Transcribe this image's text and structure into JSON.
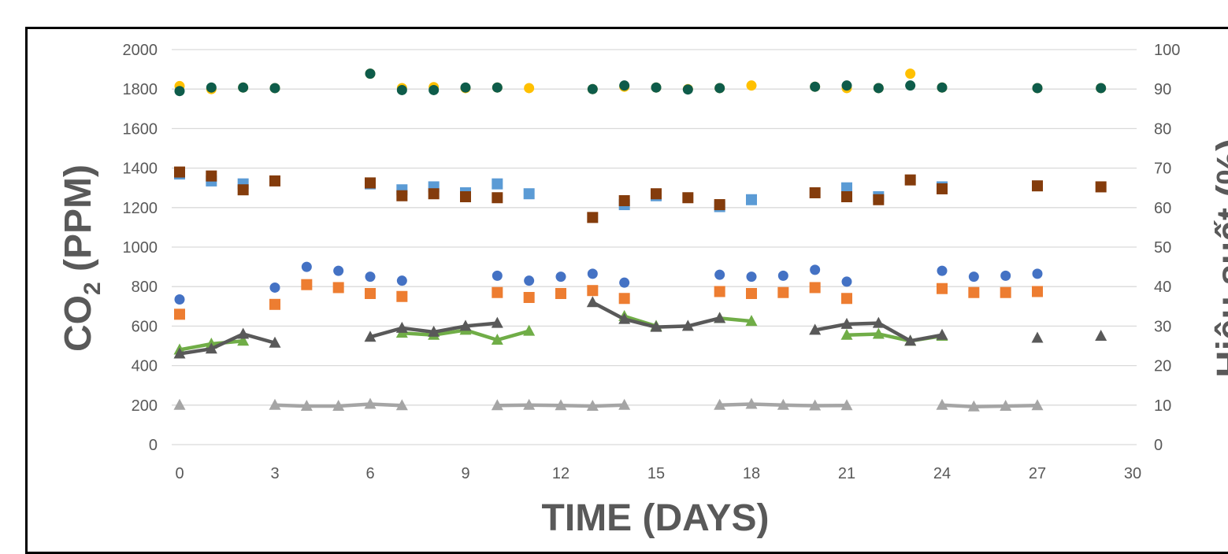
{
  "chart_data": {
    "type": "scatter",
    "xlabel": "TIME (DAYS)",
    "ylabel_left": "CO2 (PPM)",
    "ylabel_right": "Hiệu suất (%)",
    "xlim": [
      0,
      30
    ],
    "ylim_left": [
      0,
      2000
    ],
    "ylim_right": [
      0,
      100
    ],
    "x_ticks": [
      0,
      3,
      6,
      9,
      12,
      15,
      18,
      21,
      24,
      27,
      30
    ],
    "y_ticks_left": [
      0,
      200,
      400,
      600,
      800,
      1000,
      1200,
      1400,
      1600,
      1800,
      2000
    ],
    "y_ticks_right": [
      0,
      10,
      20,
      30,
      40,
      50,
      60,
      70,
      80,
      90,
      100
    ],
    "grid": "horizontal",
    "series": [
      {
        "marker": "circle",
        "color": "#FFC000",
        "line": false,
        "axis": "left",
        "points": [
          [
            0,
            1815
          ],
          [
            1,
            1800
          ],
          [
            2,
            1808
          ],
          [
            3,
            1805
          ],
          [
            6,
            1878
          ],
          [
            7,
            1805
          ],
          [
            8,
            1810
          ],
          [
            9,
            1805
          ],
          [
            10,
            1808
          ],
          [
            11,
            1805
          ],
          [
            13,
            1800
          ],
          [
            14,
            1812
          ],
          [
            15,
            1808
          ],
          [
            16,
            1800
          ],
          [
            17,
            1805
          ],
          [
            18,
            1818
          ],
          [
            20,
            1812
          ],
          [
            21,
            1805
          ],
          [
            22,
            1805
          ],
          [
            23,
            1878
          ],
          [
            24,
            1808
          ],
          [
            27,
            1805
          ],
          [
            29,
            1805
          ]
        ]
      },
      {
        "marker": "circle",
        "color": "#0E5C4A",
        "line": false,
        "axis": "left",
        "points": [
          [
            0,
            1790
          ],
          [
            1,
            1808
          ],
          [
            2,
            1808
          ],
          [
            3,
            1805
          ],
          [
            6,
            1878
          ],
          [
            7,
            1795
          ],
          [
            8,
            1795
          ],
          [
            9,
            1808
          ],
          [
            10,
            1808
          ],
          [
            13,
            1800
          ],
          [
            14,
            1818
          ],
          [
            15,
            1808
          ],
          [
            16,
            1798
          ],
          [
            17,
            1805
          ],
          [
            20,
            1812
          ],
          [
            21,
            1818
          ],
          [
            22,
            1805
          ],
          [
            23,
            1818
          ],
          [
            24,
            1808
          ],
          [
            27,
            1805
          ],
          [
            29,
            1805
          ]
        ]
      },
      {
        "marker": "square",
        "color": "#5B9BD5",
        "line": false,
        "axis": "left",
        "points": [
          [
            0,
            1370
          ],
          [
            1,
            1335
          ],
          [
            2,
            1320
          ],
          [
            6,
            1320
          ],
          [
            7,
            1290
          ],
          [
            8,
            1305
          ],
          [
            9,
            1275
          ],
          [
            10,
            1320
          ],
          [
            11,
            1270
          ],
          [
            14,
            1215
          ],
          [
            15,
            1260
          ],
          [
            17,
            1205
          ],
          [
            18,
            1240
          ],
          [
            21,
            1300
          ],
          [
            22,
            1255
          ],
          [
            24,
            1305
          ]
        ]
      },
      {
        "marker": "square",
        "color": "#843C0C",
        "line": false,
        "axis": "left",
        "points": [
          [
            0,
            1380
          ],
          [
            1,
            1360
          ],
          [
            2,
            1290
          ],
          [
            3,
            1335
          ],
          [
            6,
            1325
          ],
          [
            7,
            1260
          ],
          [
            8,
            1270
          ],
          [
            9,
            1255
          ],
          [
            10,
            1250
          ],
          [
            13,
            1150
          ],
          [
            14,
            1235
          ],
          [
            15,
            1270
          ],
          [
            16,
            1250
          ],
          [
            17,
            1215
          ],
          [
            20,
            1275
          ],
          [
            21,
            1255
          ],
          [
            22,
            1240
          ],
          [
            23,
            1340
          ],
          [
            24,
            1295
          ],
          [
            27,
            1310
          ],
          [
            29,
            1305
          ]
        ]
      },
      {
        "marker": "circle",
        "color": "#4472C4",
        "line": false,
        "axis": "left",
        "points": [
          [
            0,
            735
          ],
          [
            3,
            795
          ],
          [
            4,
            900
          ],
          [
            5,
            880
          ],
          [
            6,
            850
          ],
          [
            7,
            830
          ],
          [
            10,
            855
          ],
          [
            11,
            830
          ],
          [
            12,
            850
          ],
          [
            13,
            865
          ],
          [
            14,
            820
          ],
          [
            17,
            860
          ],
          [
            18,
            850
          ],
          [
            19,
            855
          ],
          [
            20,
            885
          ],
          [
            21,
            825
          ],
          [
            24,
            880
          ],
          [
            25,
            850
          ],
          [
            26,
            855
          ],
          [
            27,
            865
          ]
        ]
      },
      {
        "marker": "square",
        "color": "#ED7D31",
        "line": false,
        "axis": "left",
        "points": [
          [
            0,
            660
          ],
          [
            3,
            710
          ],
          [
            4,
            810
          ],
          [
            5,
            795
          ],
          [
            6,
            765
          ],
          [
            7,
            750
          ],
          [
            10,
            770
          ],
          [
            11,
            745
          ],
          [
            12,
            765
          ],
          [
            13,
            780
          ],
          [
            14,
            740
          ],
          [
            17,
            775
          ],
          [
            18,
            765
          ],
          [
            19,
            770
          ],
          [
            20,
            795
          ],
          [
            21,
            740
          ],
          [
            24,
            790
          ],
          [
            25,
            770
          ],
          [
            26,
            770
          ],
          [
            27,
            775
          ]
        ]
      },
      {
        "marker": "triangle",
        "color": "#70AD47",
        "line": true,
        "axis": "left",
        "segments": [
          [
            [
              0,
              480
            ],
            [
              1,
              510
            ],
            [
              2,
              525
            ]
          ],
          [
            [
              7,
              565
            ],
            [
              8,
              555
            ],
            [
              9,
              580
            ],
            [
              10,
              530
            ],
            [
              11,
              575
            ]
          ],
          [
            [
              14,
              650
            ],
            [
              15,
              600
            ]
          ],
          [
            [
              17,
              640
            ],
            [
              18,
              625
            ]
          ],
          [
            [
              21,
              555
            ],
            [
              22,
              560
            ],
            [
              23,
              525
            ],
            [
              24,
              550
            ]
          ]
        ]
      },
      {
        "marker": "triangle",
        "color": "#595959",
        "line": true,
        "axis": "left",
        "segments": [
          [
            [
              0,
              460
            ],
            [
              1,
              485
            ],
            [
              2,
              560
            ],
            [
              3,
              515
            ]
          ],
          [
            [
              6,
              545
            ],
            [
              7,
              590
            ],
            [
              8,
              570
            ],
            [
              9,
              600
            ],
            [
              10,
              615
            ]
          ],
          [
            [
              13,
              720
            ],
            [
              14,
              635
            ],
            [
              15,
              595
            ],
            [
              16,
              600
            ],
            [
              17,
              640
            ]
          ],
          [
            [
              20,
              580
            ],
            [
              21,
              610
            ],
            [
              22,
              615
            ],
            [
              23,
              525
            ],
            [
              24,
              555
            ]
          ],
          [
            [
              27,
              540
            ]
          ],
          [
            [
              29,
              550
            ]
          ]
        ]
      },
      {
        "marker": "triangle",
        "color": "#A5A5A5",
        "line": true,
        "axis": "left",
        "segments": [
          [
            [
              0,
              200
            ]
          ],
          [
            [
              3,
              200
            ],
            [
              4,
              195
            ],
            [
              5,
              195
            ],
            [
              6,
              205
            ],
            [
              7,
              198
            ]
          ],
          [
            [
              10,
              198
            ],
            [
              11,
              200
            ],
            [
              12,
              198
            ],
            [
              13,
              195
            ],
            [
              14,
              200
            ]
          ],
          [
            [
              17,
              200
            ],
            [
              18,
              205
            ],
            [
              19,
              200
            ],
            [
              20,
              197
            ],
            [
              21,
              198
            ]
          ],
          [
            [
              24,
              200
            ],
            [
              25,
              192
            ],
            [
              26,
              195
            ],
            [
              27,
              198
            ]
          ]
        ]
      }
    ]
  }
}
